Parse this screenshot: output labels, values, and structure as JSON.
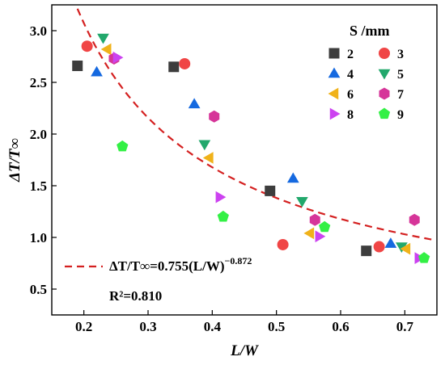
{
  "chart_data": {
    "type": "scatter",
    "xlabel": "L/W",
    "ylabel": "ΔT/T∞",
    "xlim": [
      0.15,
      0.75
    ],
    "ylim": [
      0.25,
      3.25
    ],
    "xticks": [
      "0.2",
      "0.3",
      "0.4",
      "0.5",
      "0.6",
      "0.7"
    ],
    "yticks": [
      "0.5",
      "1.0",
      "1.5",
      "2.0",
      "2.5",
      "3.0"
    ],
    "legend_title": "S /mm",
    "legend_position": "top-right",
    "grid": false,
    "series": [
      {
        "name": "2",
        "marker": "square",
        "color": "#3d3d3d",
        "points": [
          [
            0.19,
            2.66
          ],
          [
            0.34,
            2.65
          ],
          [
            0.49,
            1.45
          ],
          [
            0.64,
            0.87
          ]
        ]
      },
      {
        "name": "3",
        "marker": "circle",
        "color": "#f04545",
        "points": [
          [
            0.205,
            2.85
          ],
          [
            0.357,
            2.68
          ],
          [
            0.51,
            0.93
          ],
          [
            0.66,
            0.91
          ]
        ]
      },
      {
        "name": "4",
        "marker": "triangle-up",
        "color": "#1569e0",
        "points": [
          [
            0.22,
            2.6
          ],
          [
            0.372,
            2.29
          ],
          [
            0.526,
            1.57
          ],
          [
            0.678,
            0.94
          ]
        ]
      },
      {
        "name": "5",
        "marker": "triangle-down",
        "color": "#22a86c",
        "points": [
          [
            0.23,
            2.93
          ],
          [
            0.388,
            1.9
          ],
          [
            0.54,
            1.35
          ],
          [
            0.695,
            0.91
          ]
        ]
      },
      {
        "name": "6",
        "marker": "triangle-left",
        "color": "#f0b21a",
        "points": [
          [
            0.236,
            2.82
          ],
          [
            0.395,
            1.77
          ],
          [
            0.552,
            1.04
          ],
          [
            0.702,
            0.89
          ]
        ]
      },
      {
        "name": "7",
        "marker": "hexagon",
        "color": "#d63599",
        "points": [
          [
            0.247,
            2.73
          ],
          [
            0.403,
            2.17
          ],
          [
            0.56,
            1.17
          ],
          [
            0.715,
            1.17
          ]
        ]
      },
      {
        "name": "8",
        "marker": "triangle-right",
        "color": "#cc42f0",
        "points": [
          [
            0.252,
            2.74
          ],
          [
            0.412,
            1.39
          ],
          [
            0.567,
            1.01
          ],
          [
            0.722,
            0.8
          ]
        ]
      },
      {
        "name": "9",
        "marker": "pentagon",
        "color": "#33f045",
        "points": [
          [
            0.26,
            1.88
          ],
          [
            0.417,
            1.2
          ],
          [
            0.575,
            1.1
          ],
          [
            0.73,
            0.8
          ]
        ]
      }
    ],
    "fit": {
      "coef": 0.755,
      "exp": -0.872,
      "x_range": [
        0.19,
        0.745
      ],
      "color": "#d42020",
      "style": "dashed",
      "label_prefix": "ΔT/T∞=0.755(L/W)",
      "label_sup": "−0.872",
      "r2_label": "R²=0.810"
    }
  }
}
